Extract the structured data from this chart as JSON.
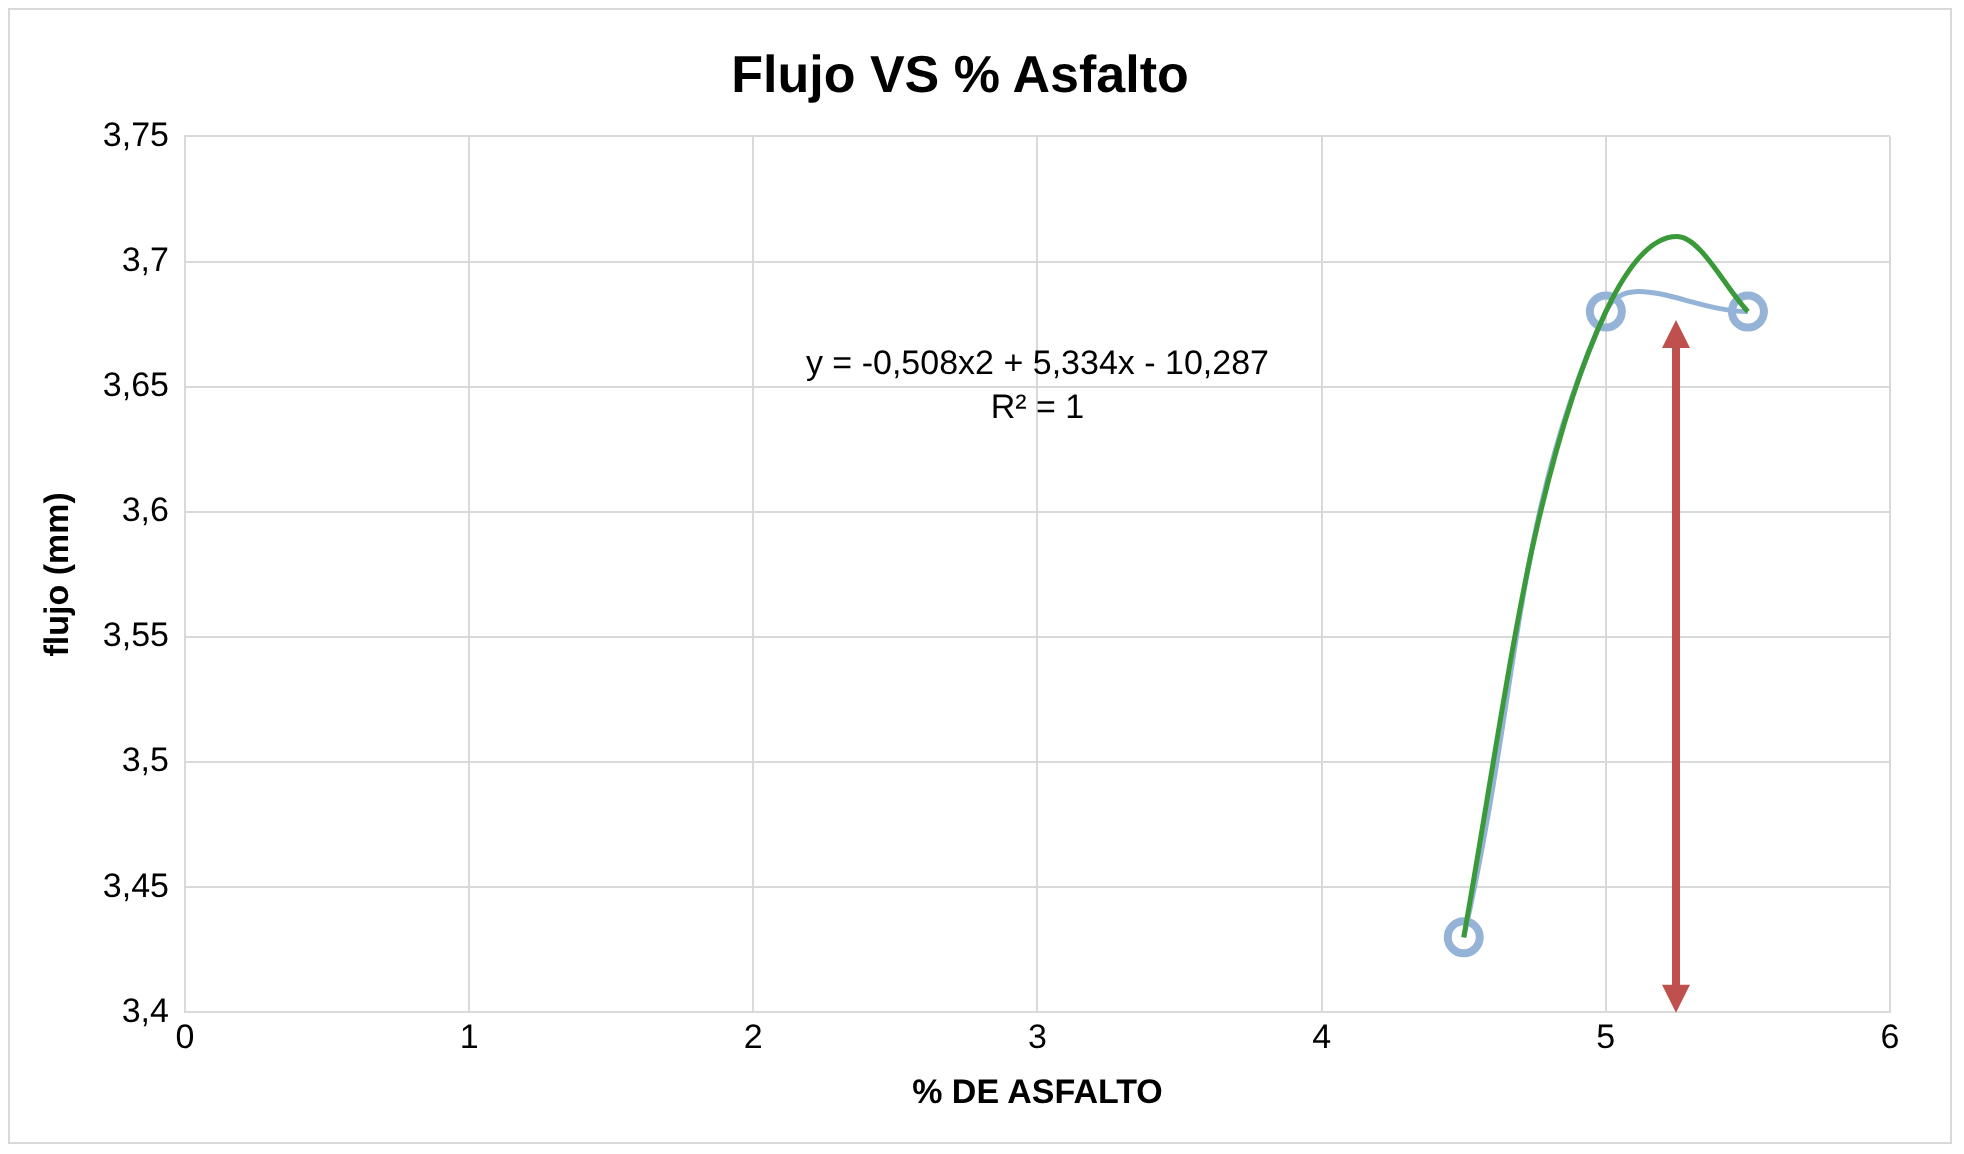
{
  "chart_data": {
    "type": "scatter",
    "title": "Flujo VS % Asfalto",
    "xlabel": "% DE ASFALTO",
    "ylabel": "flujo (mm)",
    "series": [
      {
        "type": "line",
        "color": "#95b3d7",
        "x": [
          4.5,
          5,
          5.5
        ],
        "values": [
          3.43,
          3.68,
          3.68
        ],
        "marker": "circle"
      },
      {
        "type": "line",
        "color": "#3a9a3a",
        "x": [
          4.5,
          4.75,
          5,
          5.25,
          5.5
        ],
        "values": [
          3.43,
          3.59,
          3.68,
          3.71,
          3.68
        ],
        "marker": "none"
      }
    ],
    "xlim": [
      0,
      6
    ],
    "xticks": [
      0,
      1,
      2,
      3,
      4,
      5,
      6
    ],
    "ylim": [
      3.4,
      3.75
    ],
    "yticks": [
      {
        "value": 3.4,
        "label": "3,4"
      },
      {
        "value": 3.45,
        "label": "3,45"
      },
      {
        "value": 3.5,
        "label": "3,5"
      },
      {
        "value": 3.55,
        "label": "3,55"
      },
      {
        "value": 3.6,
        "label": "3,6"
      },
      {
        "value": 3.65,
        "label": "3,65"
      },
      {
        "value": 3.7,
        "label": "3,7"
      },
      {
        "value": 3.75,
        "label": "3,75"
      }
    ],
    "grid": true,
    "legend": false,
    "ref_lines": [
      {
        "axis": "x",
        "value": 5.25,
        "color": "#c0504d"
      }
    ],
    "annotations": [
      "y = -0,508x2 + 5,334x - 10,287",
      "R² = 1"
    ]
  }
}
